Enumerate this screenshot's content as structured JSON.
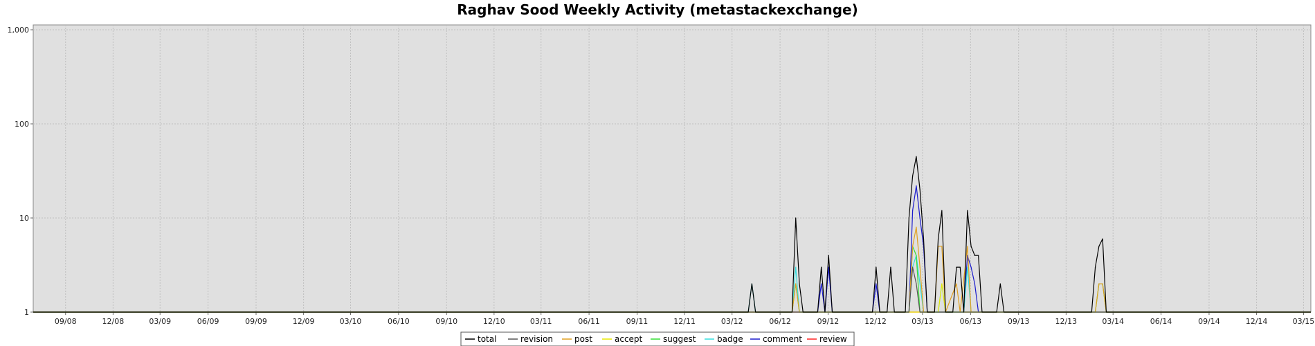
{
  "chart_data": {
    "type": "line",
    "title": "Raghav Sood Weekly Activity (metastackexchange)",
    "xlabel": "",
    "ylabel": "",
    "y_scale": "log",
    "ylim": [
      1,
      1000
    ],
    "y_ticks": [
      {
        "value": 1,
        "label": "1"
      },
      {
        "value": 10,
        "label": "10"
      },
      {
        "value": 100,
        "label": "100"
      },
      {
        "value": 1000,
        "label": "1,000"
      }
    ],
    "x_range": [
      "2008-07-01",
      "2015-03-15"
    ],
    "x_ticks": [
      {
        "date": "2008-09-01",
        "label": "09/08"
      },
      {
        "date": "2008-12-01",
        "label": "12/08"
      },
      {
        "date": "2009-03-01",
        "label": "03/09"
      },
      {
        "date": "2009-06-01",
        "label": "06/09"
      },
      {
        "date": "2009-09-01",
        "label": "09/09"
      },
      {
        "date": "2009-12-01",
        "label": "12/09"
      },
      {
        "date": "2010-03-01",
        "label": "03/10"
      },
      {
        "date": "2010-06-01",
        "label": "06/10"
      },
      {
        "date": "2010-09-01",
        "label": "09/10"
      },
      {
        "date": "2010-12-01",
        "label": "12/10"
      },
      {
        "date": "2011-03-01",
        "label": "03/11"
      },
      {
        "date": "2011-06-01",
        "label": "06/11"
      },
      {
        "date": "2011-09-01",
        "label": "09/11"
      },
      {
        "date": "2011-12-01",
        "label": "12/11"
      },
      {
        "date": "2012-03-01",
        "label": "03/12"
      },
      {
        "date": "2012-06-01",
        "label": "06/12"
      },
      {
        "date": "2012-09-01",
        "label": "09/12"
      },
      {
        "date": "2012-12-01",
        "label": "12/12"
      },
      {
        "date": "2013-03-01",
        "label": "03/13"
      },
      {
        "date": "2013-06-01",
        "label": "06/13"
      },
      {
        "date": "2013-09-01",
        "label": "09/13"
      },
      {
        "date": "2013-12-01",
        "label": "12/13"
      },
      {
        "date": "2014-03-01",
        "label": "03/14"
      },
      {
        "date": "2014-06-01",
        "label": "06/14"
      },
      {
        "date": "2014-09-01",
        "label": "09/14"
      },
      {
        "date": "2014-12-01",
        "label": "12/14"
      },
      {
        "date": "2015-03-01",
        "label": "03/15"
      }
    ],
    "grid": true,
    "background_color": "#e0e0e0",
    "grid_color": "#bfbfbf",
    "legend_position": "bottom-center",
    "series": [
      {
        "name": "total",
        "color": "#000000",
        "points": [
          [
            "2012-04-01",
            1
          ],
          [
            "2012-04-08",
            2
          ],
          [
            "2012-04-15",
            1
          ],
          [
            "2012-06-24",
            1
          ],
          [
            "2012-07-01",
            10
          ],
          [
            "2012-07-08",
            2
          ],
          [
            "2012-07-15",
            1
          ],
          [
            "2012-08-12",
            1
          ],
          [
            "2012-08-19",
            3
          ],
          [
            "2012-08-26",
            1
          ],
          [
            "2012-09-02",
            4
          ],
          [
            "2012-09-09",
            1
          ],
          [
            "2012-11-25",
            1
          ],
          [
            "2012-12-02",
            3
          ],
          [
            "2012-12-09",
            1
          ],
          [
            "2012-12-23",
            1
          ],
          [
            "2012-12-30",
            3
          ],
          [
            "2013-01-06",
            1
          ],
          [
            "2013-01-27",
            1
          ],
          [
            "2013-02-03",
            10
          ],
          [
            "2013-02-10",
            28
          ],
          [
            "2013-02-17",
            45
          ],
          [
            "2013-02-24",
            20
          ],
          [
            "2013-03-03",
            6
          ],
          [
            "2013-03-10",
            1
          ],
          [
            "2013-03-24",
            1
          ],
          [
            "2013-03-31",
            6
          ],
          [
            "2013-04-07",
            12
          ],
          [
            "2013-04-14",
            1
          ],
          [
            "2013-04-28",
            1
          ],
          [
            "2013-05-05",
            3
          ],
          [
            "2013-05-12",
            3
          ],
          [
            "2013-05-19",
            1
          ],
          [
            "2013-05-26",
            12
          ],
          [
            "2013-06-02",
            5
          ],
          [
            "2013-06-09",
            4
          ],
          [
            "2013-06-16",
            4
          ],
          [
            "2013-06-23",
            1
          ],
          [
            "2013-07-21",
            1
          ],
          [
            "2013-07-28",
            2
          ],
          [
            "2013-08-04",
            1
          ],
          [
            "2014-01-19",
            1
          ],
          [
            "2014-01-26",
            3
          ],
          [
            "2014-02-02",
            5
          ],
          [
            "2014-02-09",
            6
          ],
          [
            "2014-02-16",
            1
          ]
        ]
      },
      {
        "name": "revision",
        "color": "#555555",
        "points": [
          [
            "2013-02-03",
            1
          ],
          [
            "2013-02-10",
            3
          ],
          [
            "2013-02-17",
            2
          ],
          [
            "2013-02-24",
            1
          ]
        ]
      },
      {
        "name": "post",
        "color": "#e0a020",
        "points": [
          [
            "2012-06-24",
            1
          ],
          [
            "2012-07-01",
            2
          ],
          [
            "2012-07-08",
            1
          ],
          [
            "2013-02-03",
            1
          ],
          [
            "2013-02-10",
            5
          ],
          [
            "2013-02-17",
            8
          ],
          [
            "2013-02-24",
            3
          ],
          [
            "2013-03-03",
            1
          ],
          [
            "2013-03-24",
            1
          ],
          [
            "2013-03-31",
            5
          ],
          [
            "2013-04-07",
            5
          ],
          [
            "2013-04-14",
            1
          ],
          [
            "2013-05-05",
            2
          ],
          [
            "2013-05-12",
            1
          ],
          [
            "2013-05-26",
            5
          ],
          [
            "2013-06-02",
            1
          ],
          [
            "2014-01-26",
            1
          ],
          [
            "2014-02-02",
            2
          ],
          [
            "2014-02-09",
            2
          ],
          [
            "2014-02-16",
            1
          ]
        ]
      },
      {
        "name": "accept",
        "color": "#e8e800",
        "points": [
          [
            "2013-03-31",
            1
          ],
          [
            "2013-04-07",
            2
          ],
          [
            "2013-04-14",
            1
          ]
        ]
      },
      {
        "name": "suggest",
        "color": "#33dd33",
        "points": [
          [
            "2012-06-24",
            1
          ],
          [
            "2012-07-01",
            2
          ],
          [
            "2012-07-08",
            1
          ],
          [
            "2013-02-03",
            1
          ],
          [
            "2013-02-10",
            5
          ],
          [
            "2013-02-17",
            4
          ],
          [
            "2013-02-24",
            1
          ],
          [
            "2014-01-26",
            1
          ],
          [
            "2014-02-02",
            2
          ],
          [
            "2014-02-09",
            2
          ],
          [
            "2014-02-16",
            1
          ]
        ]
      },
      {
        "name": "badge",
        "color": "#33dddd",
        "points": [
          [
            "2012-04-01",
            1
          ],
          [
            "2012-04-08",
            2
          ],
          [
            "2012-04-15",
            1
          ],
          [
            "2012-06-24",
            1
          ],
          [
            "2012-07-01",
            3
          ],
          [
            "2012-07-08",
            1
          ],
          [
            "2013-02-03",
            1
          ],
          [
            "2013-02-10",
            3
          ],
          [
            "2013-02-17",
            4
          ],
          [
            "2013-02-24",
            2
          ],
          [
            "2013-03-03",
            1
          ],
          [
            "2013-03-31",
            1
          ],
          [
            "2013-04-07",
            2
          ],
          [
            "2013-04-14",
            1
          ],
          [
            "2013-05-19",
            1
          ],
          [
            "2013-05-26",
            3
          ],
          [
            "2013-06-02",
            1
          ]
        ]
      },
      {
        "name": "comment",
        "color": "#1a1acc",
        "points": [
          [
            "2012-08-12",
            1
          ],
          [
            "2012-08-19",
            2
          ],
          [
            "2012-08-26",
            1
          ],
          [
            "2012-09-02",
            3
          ],
          [
            "2012-09-09",
            1
          ],
          [
            "2012-11-25",
            1
          ],
          [
            "2012-12-02",
            2
          ],
          [
            "2012-12-09",
            1
          ],
          [
            "2013-02-03",
            1
          ],
          [
            "2013-02-10",
            12
          ],
          [
            "2013-02-17",
            22
          ],
          [
            "2013-02-24",
            10
          ],
          [
            "2013-03-03",
            5
          ],
          [
            "2013-03-10",
            1
          ],
          [
            "2013-05-19",
            1
          ],
          [
            "2013-05-26",
            4
          ],
          [
            "2013-06-02",
            3
          ],
          [
            "2013-06-09",
            2
          ],
          [
            "2013-06-16",
            1
          ]
        ]
      },
      {
        "name": "review",
        "color": "#ff2222",
        "points": []
      }
    ]
  }
}
